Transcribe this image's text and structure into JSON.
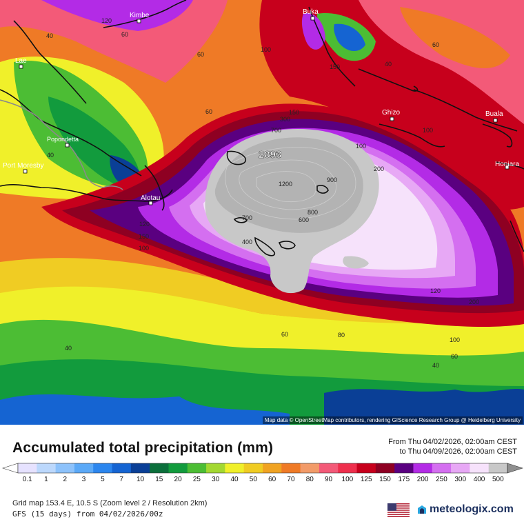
{
  "map": {
    "attribution": "Map data © OpenStreetMap contributors, rendering GIScience Research Group @ Heidelberg University",
    "max_label": "2893",
    "places": [
      {
        "name": "Kimbe"
      },
      {
        "name": "Buka"
      },
      {
        "name": "Lae"
      },
      {
        "name": "Ghizo"
      },
      {
        "name": "Buala"
      },
      {
        "name": "Popondetta"
      },
      {
        "name": "Honiara"
      },
      {
        "name": "Port Moresby"
      },
      {
        "name": "Alotau"
      }
    ],
    "contour_labels": [
      "120",
      "60",
      "40",
      "100",
      "60",
      "60",
      "150",
      "40",
      "100",
      "60",
      "300",
      "700",
      "150",
      "100",
      "200",
      "1200",
      "900",
      "800",
      "600",
      "700",
      "400",
      "120",
      "150",
      "100",
      "120",
      "200",
      "60",
      "80",
      "100",
      "60",
      "40",
      "40",
      "40"
    ]
  },
  "header": {
    "title": "Accumulated total precipitation (mm)",
    "from": "From Thu 04/02/2026, 02:00am CEST",
    "to": "to Thu 04/09/2026, 02:00am CEST"
  },
  "legend": {
    "unit": "mm",
    "values": [
      "0.1",
      "1",
      "2",
      "3",
      "5",
      "7",
      "10",
      "15",
      "20",
      "25",
      "30",
      "40",
      "50",
      "60",
      "70",
      "80",
      "90",
      "100",
      "125",
      "150",
      "175",
      "200",
      "250",
      "300",
      "400",
      "500"
    ],
    "colors": [
      "#e6e2ff",
      "#bcd8fc",
      "#8dc2fb",
      "#5ba9f7",
      "#2c86ee",
      "#1564d2",
      "#0a3f96",
      "#0b6f3b",
      "#129b3d",
      "#4cbd34",
      "#a3d831",
      "#f0f02a",
      "#f0cc23",
      "#f0a322",
      "#ef7a26",
      "#f29b69",
      "#f35a78",
      "#ee2f4d",
      "#c7001c",
      "#8e0022",
      "#5a0080",
      "#b32be6",
      "#d46ff0",
      "#e7a8f5",
      "#f6e2fb",
      "#c8c8c8"
    ],
    "low_color": "#ffffff",
    "high_color": "#8f8f8f"
  },
  "footer": {
    "grid": "Grid map 153.4 E, 10.5 S (Zoom level 2 / Resolution 2km)",
    "run": "GFS (15 days) from  04/02/2026/00z",
    "brand": "meteologix.com",
    "flag_icon": "us-flag-icon"
  }
}
